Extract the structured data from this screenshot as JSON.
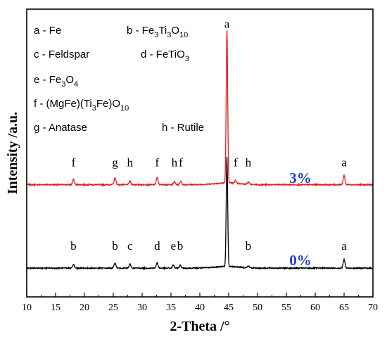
{
  "chart_data": {
    "type": "line",
    "xlabel": "2-Theta /°",
    "ylabel": "Intensity /a.u.",
    "xlim": [
      10,
      70
    ],
    "ylim": [
      0,
      1000
    ],
    "xticks": [
      10,
      15,
      20,
      25,
      30,
      35,
      40,
      45,
      50,
      55,
      60,
      65,
      70
    ],
    "grid": false,
    "legend": {
      "placement": "top-left",
      "entries": [
        {
          "text": "a - Fe"
        },
        {
          "text": "b - Fe",
          "sub": "3",
          "text2": "Ti",
          "sub2": "3",
          "text3": "O",
          "sub3": "10"
        },
        {
          "text": "c - Feldspar"
        },
        {
          "text": "d - FeTiO",
          "sub": "3"
        },
        {
          "text": "e - Fe",
          "sub": "3",
          "text2": "O",
          "sub2": "4"
        },
        {
          "text": "f - (MgFe)(Ti",
          "sub": "3",
          "text2": "Fe)O",
          "sub2": "10"
        },
        {
          "text": "g - Anatase"
        },
        {
          "text": "h - Rutile"
        }
      ]
    },
    "series": [
      {
        "name": "3%",
        "color": "#e8191b",
        "baseline": 390,
        "peaks": [
          {
            "x": 18.1,
            "h": 18,
            "label": "f"
          },
          {
            "x": 25.3,
            "h": 24,
            "label": "g"
          },
          {
            "x": 27.9,
            "h": 12,
            "label": "h"
          },
          {
            "x": 32.6,
            "h": 24,
            "label": "f"
          },
          {
            "x": 35.6,
            "h": 10,
            "label": "h"
          },
          {
            "x": 36.7,
            "h": 12,
            "label": "f"
          },
          {
            "x": 44.7,
            "h": 530,
            "label": "a"
          },
          {
            "x": 46.2,
            "h": 10,
            "label": "f"
          },
          {
            "x": 48.4,
            "h": 8,
            "label": "h"
          },
          {
            "x": 65.0,
            "h": 32,
            "label": "a"
          }
        ]
      },
      {
        "name": "0%",
        "color": "#000000",
        "baseline": 100,
        "peaks": [
          {
            "x": 18.1,
            "h": 12,
            "label": "b"
          },
          {
            "x": 25.3,
            "h": 18,
            "label": "b"
          },
          {
            "x": 27.9,
            "h": 14,
            "label": "c"
          },
          {
            "x": 32.6,
            "h": 18,
            "label": "d"
          },
          {
            "x": 35.4,
            "h": 10,
            "label": "e"
          },
          {
            "x": 36.6,
            "h": 10,
            "label": "b"
          },
          {
            "x": 44.7,
            "h": 380,
            "label": ""
          },
          {
            "x": 48.4,
            "h": 6,
            "label": "b"
          },
          {
            "x": 65.0,
            "h": 30,
            "label": "a"
          }
        ]
      }
    ]
  }
}
